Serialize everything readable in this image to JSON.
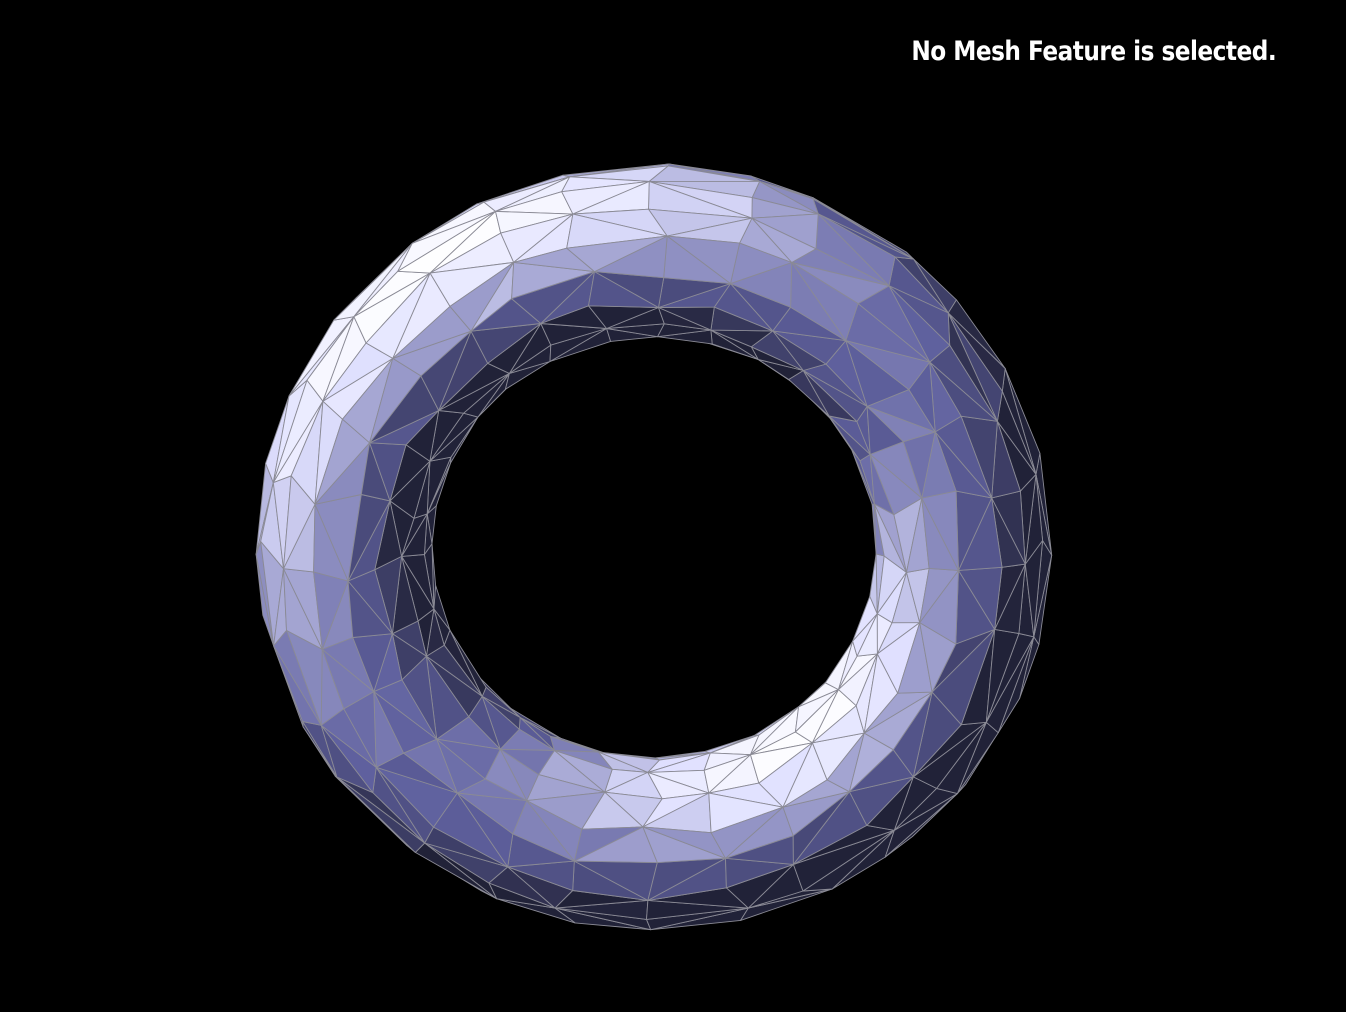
{
  "viewer": {
    "status_message": "No Mesh Feature is selected.",
    "background_color": "#000000",
    "mesh": {
      "shape": "torus",
      "base_color": "#9a9cff",
      "edge_color": "#8a8a95",
      "major_segments": 28,
      "minor_segments": 16
    }
  }
}
